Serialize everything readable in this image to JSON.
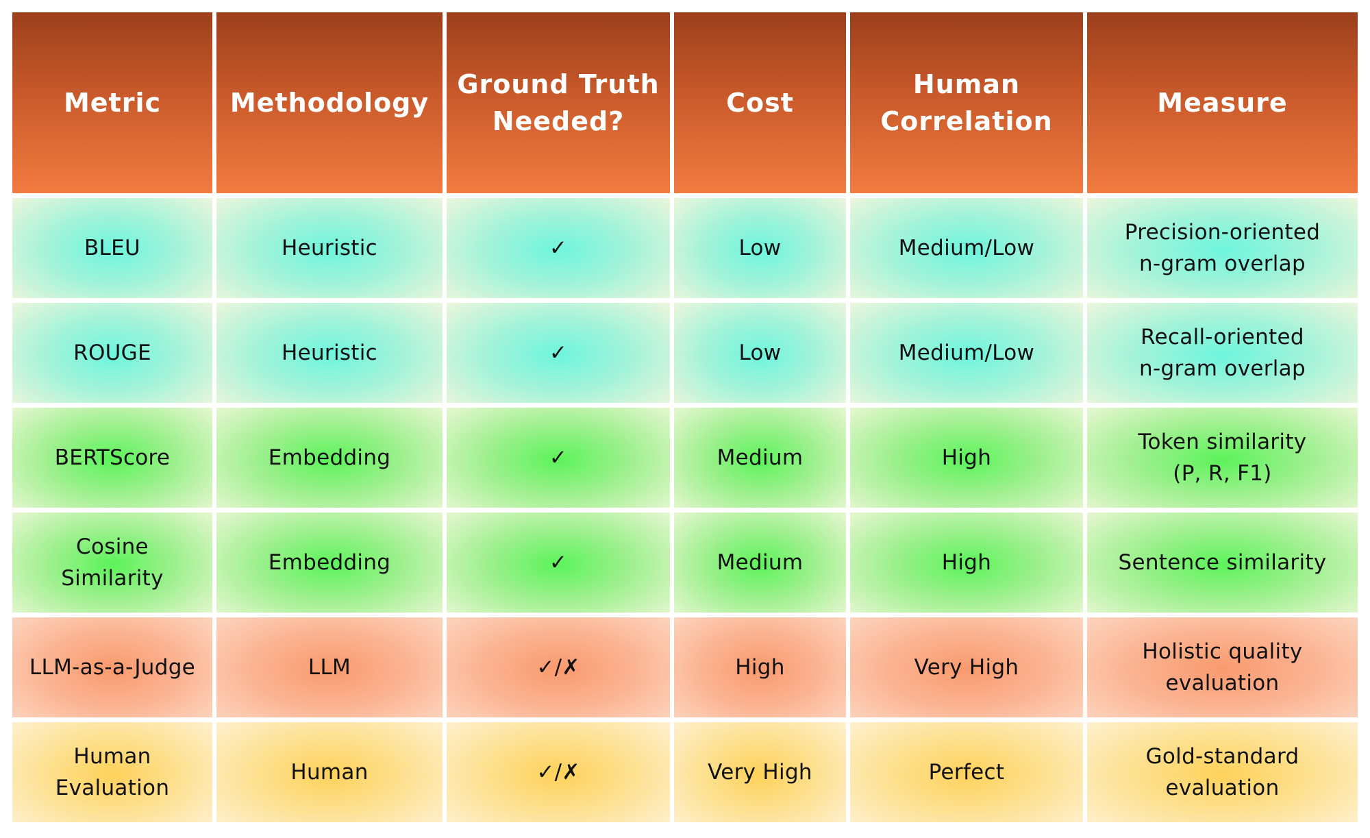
{
  "chart_data": {
    "type": "table",
    "columns": [
      "Metric",
      "Methodology",
      "Ground Truth\nNeeded?",
      "Cost",
      "Human\nCorrelation",
      "Measure"
    ],
    "rows": [
      [
        "BLEU",
        "Heuristic",
        "✓",
        "Low",
        "Medium/Low",
        "Precision-oriented\nn-gram overlap"
      ],
      [
        "ROUGE",
        "Heuristic",
        "✓",
        "Low",
        "Medium/Low",
        "Recall-oriented\nn-gram overlap"
      ],
      [
        "BERTScore",
        "Embedding",
        "✓",
        "Medium",
        "High",
        "Token similarity\n(P, R, F1)"
      ],
      [
        "Cosine\nSimilarity",
        "Embedding",
        "✓",
        "Medium",
        "High",
        "Sentence similarity"
      ],
      [
        "LLM-as-a-Judge",
        "LLM",
        "✓/✗",
        "High",
        "Very High",
        "Holistic quality\nevaluation"
      ],
      [
        "Human\nEvaluation",
        "Human",
        "✓/✗",
        "Very High",
        "Perfect",
        "Gold-standard\nevaluation"
      ]
    ],
    "colors": {
      "header_top": "#9c3f1c",
      "header_bottom": "#f27c41",
      "row_heuristic": "#6ef5dd",
      "row_embedding": "#5cf35a",
      "row_llm": "#fa9a6e",
      "row_human": "#fed15a"
    },
    "row_color_groups": [
      "cyan",
      "cyan",
      "green",
      "green",
      "salmon",
      "yellow"
    ]
  }
}
